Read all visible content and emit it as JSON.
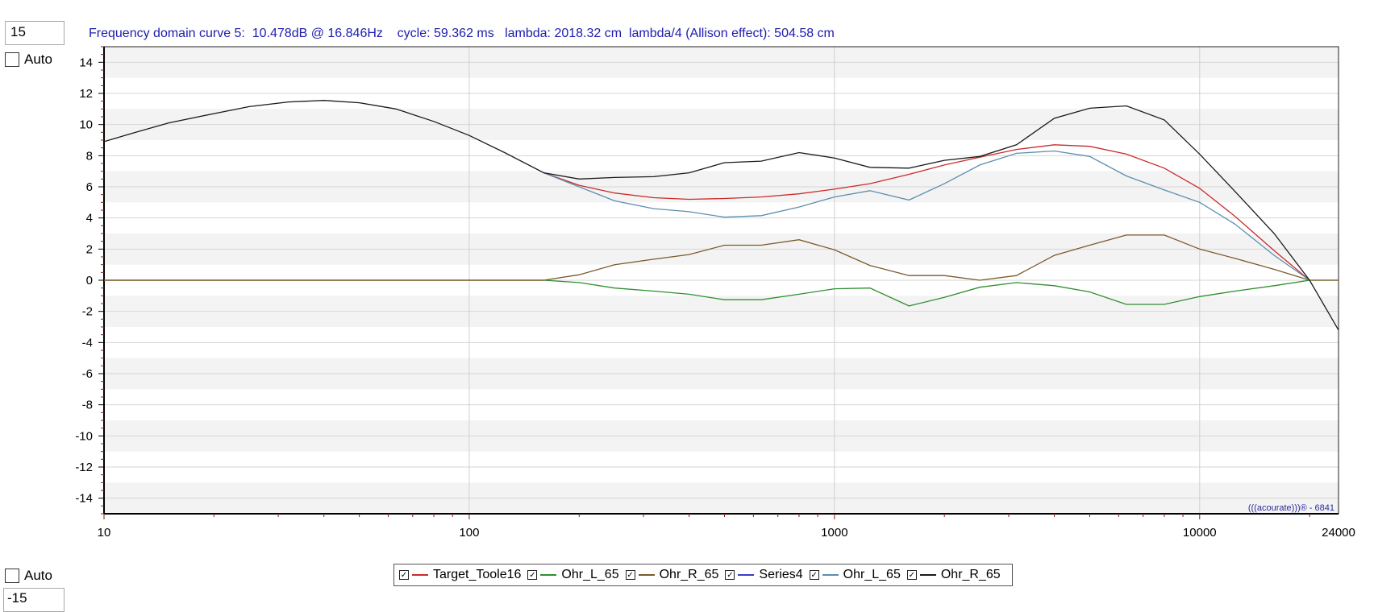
{
  "controls": {
    "y_max_value": "15",
    "y_min_value": "-15",
    "auto_label": "Auto"
  },
  "header": {
    "text": "Frequency domain curve 5:  10.478dB @ 16.846Hz    cycle: 59.362 ms   lambda: 2018.32 cm  lambda/4 (Allison effect): 504.58 cm"
  },
  "watermark": "(((acourate)))® - 6841",
  "chart_data": {
    "type": "line",
    "x_scale": "log",
    "xlim": [
      10,
      24000
    ],
    "ylim": [
      -15,
      15
    ],
    "x_ticks": [
      "10",
      "100",
      "1000",
      "10000",
      "24000"
    ],
    "y_ticks": [
      "14",
      "12",
      "10",
      "8",
      "6",
      "4",
      "2",
      "0",
      "-2",
      "-4",
      "-6",
      "-8",
      "-10",
      "-12",
      "-14"
    ],
    "grid": true,
    "legend_position": "bottom",
    "series": [
      {
        "name": "Target_Toole16",
        "color": "#cc2a2a",
        "points": [
          [
            10,
            0
          ],
          [
            160,
            0
          ]
        ],
        "curve": [
          [
            160,
            6.9
          ],
          [
            200,
            6.1
          ],
          [
            250,
            5.6
          ],
          [
            320,
            5.3
          ],
          [
            400,
            5.2
          ],
          [
            500,
            5.25
          ],
          [
            630,
            5.35
          ],
          [
            800,
            5.55
          ],
          [
            1000,
            5.85
          ],
          [
            1250,
            6.2
          ],
          [
            1600,
            6.8
          ],
          [
            2000,
            7.4
          ],
          [
            2500,
            7.9
          ],
          [
            3150,
            8.4
          ],
          [
            4000,
            8.7
          ],
          [
            5000,
            8.6
          ],
          [
            6300,
            8.1
          ],
          [
            8000,
            7.2
          ],
          [
            10000,
            5.9
          ],
          [
            12500,
            4.1
          ],
          [
            16000,
            1.9
          ],
          [
            20000,
            0.0
          ]
        ]
      },
      {
        "name": "Ohr_L_65",
        "color": "#2f8f2f",
        "curve": [
          [
            10,
            0
          ],
          [
            160,
            0
          ],
          [
            200,
            -0.15
          ],
          [
            250,
            -0.5
          ],
          [
            320,
            -0.7
          ],
          [
            400,
            -0.9
          ],
          [
            500,
            -1.25
          ],
          [
            630,
            -1.25
          ],
          [
            800,
            -0.9
          ],
          [
            1000,
            -0.55
          ],
          [
            1250,
            -0.5
          ],
          [
            1600,
            -1.65
          ],
          [
            2000,
            -1.1
          ],
          [
            2500,
            -0.45
          ],
          [
            3150,
            -0.15
          ],
          [
            4000,
            -0.35
          ],
          [
            5000,
            -0.75
          ],
          [
            6300,
            -1.55
          ],
          [
            8000,
            -1.55
          ],
          [
            10000,
            -1.05
          ],
          [
            12500,
            -0.7
          ],
          [
            16000,
            -0.35
          ],
          [
            20000,
            0.0
          ],
          [
            24000,
            0.0
          ]
        ]
      },
      {
        "name": "Ohr_R_65",
        "color": "#7a5a2a",
        "curve": [
          [
            10,
            0
          ],
          [
            160,
            0
          ],
          [
            200,
            0.35
          ],
          [
            250,
            1.0
          ],
          [
            320,
            1.35
          ],
          [
            400,
            1.65
          ],
          [
            500,
            2.25
          ],
          [
            630,
            2.25
          ],
          [
            800,
            2.6
          ],
          [
            1000,
            1.95
          ],
          [
            1250,
            0.95
          ],
          [
            1600,
            0.3
          ],
          [
            2000,
            0.3
          ],
          [
            2500,
            0.0
          ],
          [
            3150,
            0.3
          ],
          [
            4000,
            1.6
          ],
          [
            5000,
            2.25
          ],
          [
            6300,
            2.9
          ],
          [
            8000,
            2.9
          ],
          [
            10000,
            2.0
          ],
          [
            12500,
            1.4
          ],
          [
            16000,
            0.7
          ],
          [
            20000,
            0.0
          ],
          [
            24000,
            0.0
          ]
        ]
      },
      {
        "name": "Series4",
        "color": "#3a3ad0",
        "curve": []
      },
      {
        "name": "Ohr_L_65",
        "color": "#5b8fae",
        "curve": [
          [
            160,
            6.9
          ],
          [
            200,
            6.0
          ],
          [
            250,
            5.1
          ],
          [
            320,
            4.6
          ],
          [
            400,
            4.4
          ],
          [
            500,
            4.05
          ],
          [
            630,
            4.15
          ],
          [
            800,
            4.7
          ],
          [
            1000,
            5.35
          ],
          [
            1250,
            5.75
          ],
          [
            1600,
            5.15
          ],
          [
            2000,
            6.2
          ],
          [
            2500,
            7.4
          ],
          [
            3150,
            8.15
          ],
          [
            4000,
            8.3
          ],
          [
            5000,
            7.95
          ],
          [
            6300,
            6.7
          ],
          [
            8000,
            5.8
          ],
          [
            10000,
            5.0
          ],
          [
            12500,
            3.6
          ],
          [
            16000,
            1.6
          ],
          [
            20000,
            0.0
          ]
        ]
      },
      {
        "name": "Ohr_R_65",
        "color": "#1a1a1a",
        "curve": [
          [
            10,
            8.9
          ],
          [
            12,
            9.45
          ],
          [
            15,
            10.1
          ],
          [
            20,
            10.7
          ],
          [
            25,
            11.15
          ],
          [
            32,
            11.45
          ],
          [
            40,
            11.55
          ],
          [
            50,
            11.4
          ],
          [
            63,
            11.0
          ],
          [
            80,
            10.2
          ],
          [
            100,
            9.3
          ],
          [
            125,
            8.2
          ],
          [
            160,
            6.9
          ],
          [
            200,
            6.5
          ],
          [
            250,
            6.6
          ],
          [
            320,
            6.65
          ],
          [
            400,
            6.9
          ],
          [
            500,
            7.55
          ],
          [
            630,
            7.65
          ],
          [
            800,
            8.2
          ],
          [
            1000,
            7.85
          ],
          [
            1250,
            7.25
          ],
          [
            1600,
            7.2
          ],
          [
            2000,
            7.7
          ],
          [
            2500,
            7.95
          ],
          [
            3150,
            8.7
          ],
          [
            4000,
            10.4
          ],
          [
            5000,
            11.05
          ],
          [
            6300,
            11.2
          ],
          [
            8000,
            10.3
          ],
          [
            10000,
            8.1
          ],
          [
            12500,
            5.7
          ],
          [
            16000,
            3.0
          ],
          [
            20000,
            0.0
          ],
          [
            24000,
            -3.2
          ]
        ]
      }
    ]
  }
}
